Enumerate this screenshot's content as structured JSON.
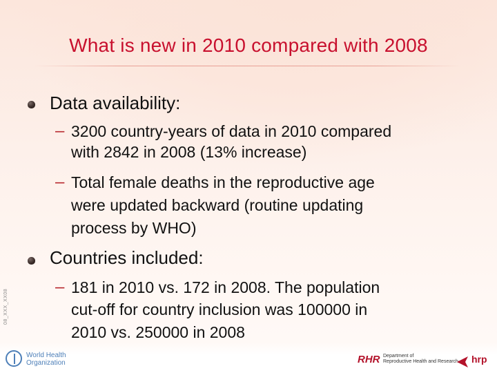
{
  "slide": {
    "title": "What is new in 2010 compared with 2008",
    "sections": [
      {
        "heading": "Data availability:",
        "items": [
          {
            "marker": "–",
            "lines": [
              "3200 country-years of data in 2010 compared",
              "with 2842 in 2008 (13% increase)"
            ]
          },
          {
            "marker": "–",
            "lines": [
              "Total female deaths in the reproductive age",
              "were updated backward (routine updating",
              "process by WHO)"
            ]
          }
        ]
      },
      {
        "heading": "Countries included:",
        "items": [
          {
            "marker": "–",
            "lines": [
              "181 in 2010 vs. 172 in 2008. The population",
              "cut-off for country inclusion was 100000 in",
              "2010 vs. 250000 in 2008"
            ]
          }
        ]
      }
    ]
  },
  "footer": {
    "side_code": "08_XXX_XX08",
    "who_name_line1": "World Health",
    "who_name_line2": "Organization",
    "rhr_logo": "RHR",
    "rhr_dept_line1": "Department of",
    "rhr_dept_line2": "Reproductive Health and Research",
    "hrp_logo": "hrp"
  },
  "colors": {
    "title": "#c8102e",
    "dash": "#b8282e",
    "body_text": "#111111",
    "who_blue": "#4d7fb8"
  }
}
